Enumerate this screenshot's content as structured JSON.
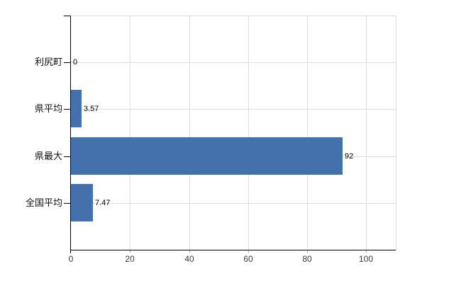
{
  "chart_data": {
    "type": "bar",
    "orientation": "horizontal",
    "title": "",
    "xlabel": "",
    "ylabel": "",
    "categories": [
      "利尻町",
      "県平均",
      "県最大",
      "全国平均"
    ],
    "values": [
      0,
      3.57,
      92,
      7.47
    ],
    "value_labels": [
      "0",
      "3.57",
      "92",
      "7.47"
    ],
    "x_ticks": [
      0,
      20,
      40,
      60,
      80,
      100
    ],
    "x_tick_labels": [
      "0",
      "20",
      "40",
      "60",
      "80",
      "100"
    ],
    "xlim": [
      0,
      110
    ],
    "grid": true,
    "legend": false,
    "colors": {
      "bar": "#4271ac",
      "grid": "#dcdcdc",
      "axis": "#000000",
      "x_tick": "#ababab",
      "category_label": "#111111",
      "value_label": "#000000",
      "tick_label": "#3c3c3c",
      "background": "#ffffff"
    }
  }
}
